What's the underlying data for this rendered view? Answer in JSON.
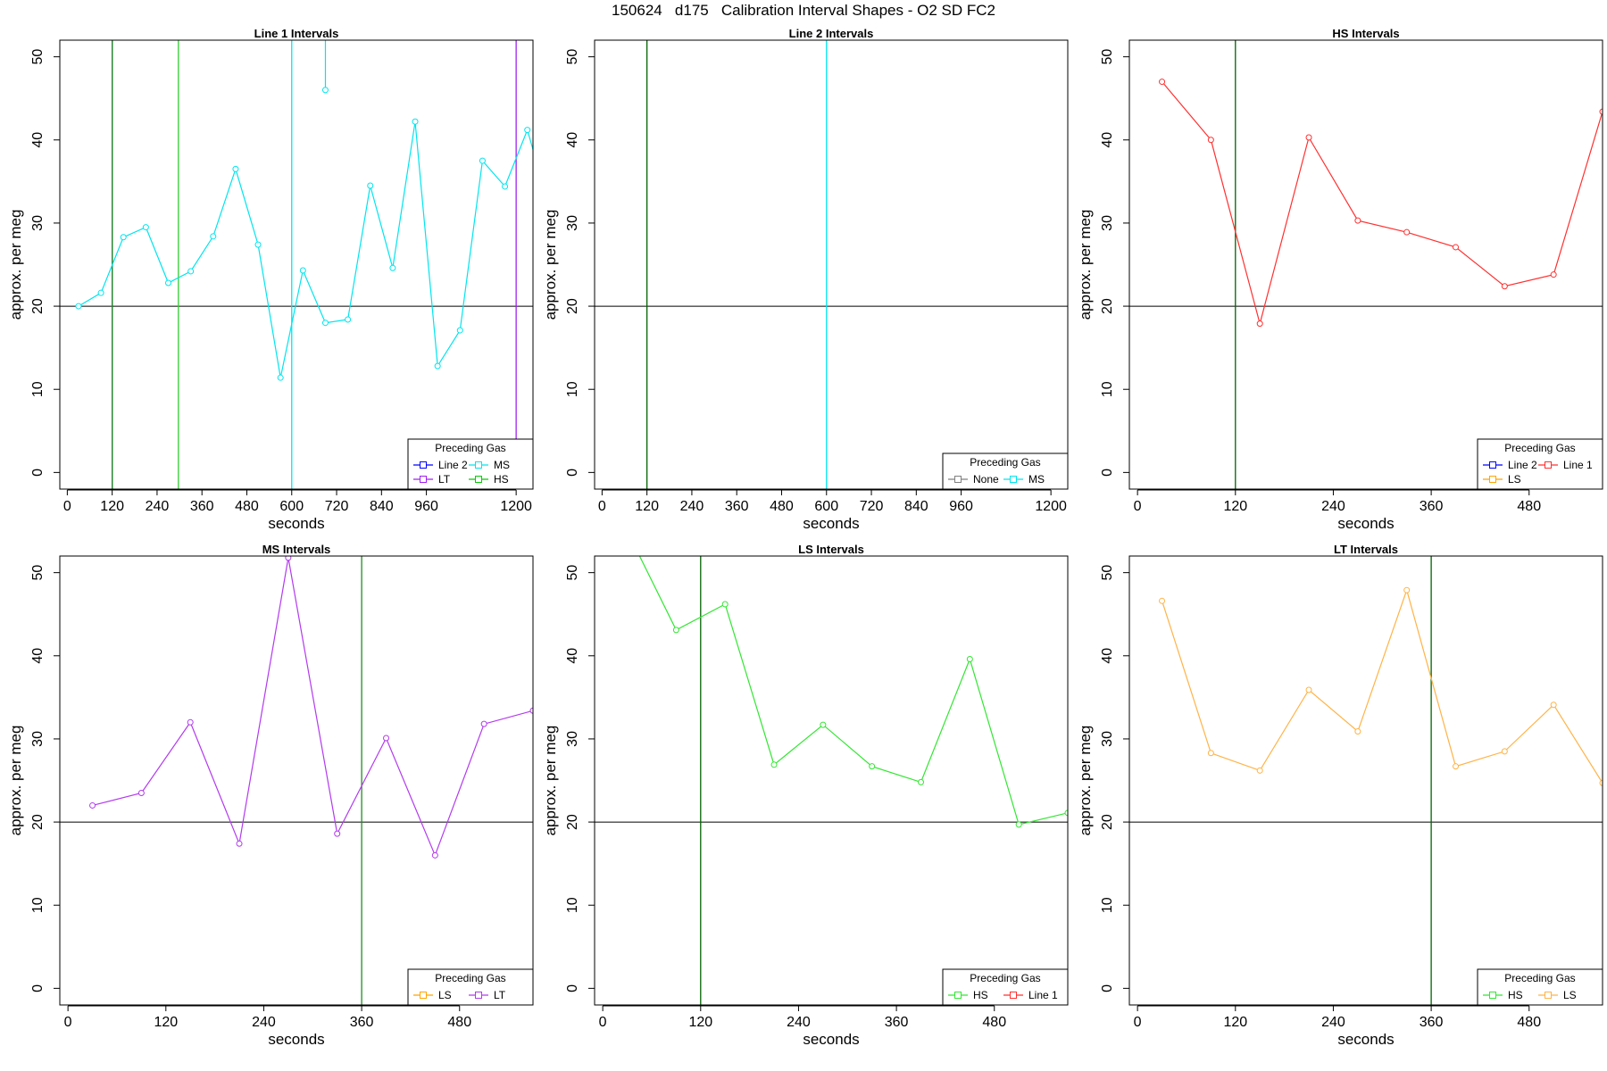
{
  "figure": {
    "title": "150624   d175   Calibration Interval Shapes - O2 SD FC2"
  },
  "chart_data": [
    {
      "id": "line1",
      "type": "line",
      "title": "Line 1 Intervals",
      "xlabel": "seconds",
      "ylabel": "approx. per meg",
      "xlim": [
        -20,
        1245
      ],
      "ylim": [
        -2,
        52
      ],
      "xticks": [
        0,
        120,
        240,
        360,
        480,
        600,
        720,
        840,
        960,
        1200
      ],
      "yticks": [
        0,
        10,
        20,
        30,
        40,
        50
      ],
      "hline": 20,
      "vlines": [
        {
          "x": 120,
          "color": "#000080"
        },
        {
          "x": 120,
          "color": "#228B22"
        },
        {
          "x": 297,
          "color": "#32CD32"
        },
        {
          "x": 600,
          "color": "#00E5EE"
        },
        {
          "x": 1200,
          "color": "#A020F0"
        }
      ],
      "series": [
        {
          "color": "#00E5EE",
          "segments": [
            [
              [
                30,
                20
              ],
              [
                90,
                21.6
              ],
              [
                150,
                28.3
              ],
              [
                210,
                29.5
              ],
              [
                270,
                22.8
              ],
              [
                330,
                24.2
              ],
              [
                390,
                28.4
              ],
              [
                450,
                36.5
              ],
              [
                510,
                27.4
              ],
              [
                570,
                11.4
              ],
              [
                630,
                24.3
              ],
              [
                690,
                18
              ],
              [
                750,
                18.4
              ],
              [
                810,
                34.5
              ],
              [
                870,
                24.6
              ],
              [
                930,
                42.2
              ],
              [
                990,
                12.8
              ],
              [
                1050,
                17.1
              ],
              [
                1110,
                37.5
              ],
              [
                1170,
                34.4
              ],
              [
                1230,
                41.2
              ],
              [
                1260,
                36.5
              ]
            ],
            [
              [
                690,
                46
              ],
              [
                690,
                53
              ]
            ]
          ]
        }
      ],
      "legend": {
        "title": "Preceding Gas",
        "position": "bottom-right",
        "columns": 2,
        "entries": [
          {
            "label": "Line 2",
            "color": "#0000FF"
          },
          {
            "label": "MS",
            "color": "#00E5EE"
          },
          {
            "label": "LT",
            "color": "#A020F0"
          },
          {
            "label": "HS",
            "color": "#00CD00"
          }
        ]
      }
    },
    {
      "id": "line2",
      "type": "line",
      "title": "Line 2 Intervals",
      "xlabel": "seconds",
      "ylabel": "approx. per meg",
      "xlim": [
        -20,
        1245
      ],
      "ylim": [
        -2,
        52
      ],
      "xticks": [
        0,
        120,
        240,
        360,
        480,
        600,
        720,
        840,
        960,
        1200
      ],
      "yticks": [
        0,
        10,
        20,
        30,
        40,
        50
      ],
      "hline": 20,
      "vlines": [
        {
          "x": 120,
          "color": "#006400"
        },
        {
          "x": 600,
          "color": "#00E5EE"
        }
      ],
      "series": [],
      "legend": {
        "title": "Preceding Gas",
        "position": "bottom-right",
        "columns": 2,
        "entries": [
          {
            "label": "None",
            "color": "#808080"
          },
          {
            "label": "MS",
            "color": "#00E5EE"
          }
        ]
      }
    },
    {
      "id": "hs",
      "type": "line",
      "title": "HS Intervals",
      "xlabel": "seconds",
      "ylabel": "approx. per meg",
      "xlim": [
        -10,
        570
      ],
      "ylim": [
        -2,
        52
      ],
      "xticks": [
        0,
        120,
        240,
        360,
        480
      ],
      "yticks": [
        0,
        10,
        20,
        30,
        40,
        50
      ],
      "hline": 20,
      "vlines": [
        {
          "x": 120,
          "color": "#006400"
        }
      ],
      "series": [
        {
          "color": "#FF3030",
          "segments": [
            [
              [
                30,
                47
              ],
              [
                90,
                40
              ],
              [
                150,
                17.9
              ],
              [
                210,
                40.3
              ],
              [
                270,
                30.3
              ],
              [
                330,
                28.9
              ],
              [
                390,
                27.1
              ],
              [
                450,
                22.4
              ],
              [
                510,
                23.8
              ],
              [
                570,
                43.4
              ]
            ]
          ]
        }
      ],
      "legend": {
        "title": "Preceding Gas",
        "position": "bottom-right",
        "columns": 2,
        "entries": [
          {
            "label": "Line 2",
            "color": "#0000FF"
          },
          {
            "label": "Line 1",
            "color": "#FF3030"
          },
          {
            "label": "LS",
            "color": "#FFA500"
          }
        ]
      }
    },
    {
      "id": "ms",
      "type": "line",
      "title": "MS Intervals",
      "xlabel": "seconds",
      "ylabel": "approx. per meg",
      "xlim": [
        -10,
        570
      ],
      "ylim": [
        -2,
        52
      ],
      "xticks": [
        0,
        120,
        240,
        360,
        480
      ],
      "yticks": [
        0,
        10,
        20,
        30,
        40,
        50
      ],
      "hline": 20,
      "vlines": [
        {
          "x": 360,
          "color": "#228B22"
        }
      ],
      "series": [
        {
          "color": "#B23AEE",
          "segments": [
            [
              [
                30,
                22
              ],
              [
                90,
                23.5
              ],
              [
                150,
                32
              ],
              [
                210,
                17.4
              ],
              [
                270,
                51.8
              ],
              [
                330,
                18.6
              ],
              [
                390,
                30.1
              ],
              [
                450,
                16
              ],
              [
                510,
                31.8
              ],
              [
                570,
                33.4
              ]
            ]
          ]
        }
      ],
      "legend": {
        "title": "Preceding Gas",
        "position": "bottom-right",
        "columns": 2,
        "entries": [
          {
            "label": "LS",
            "color": "#FFA500"
          },
          {
            "label": "LT",
            "color": "#B23AEE"
          }
        ]
      }
    },
    {
      "id": "ls",
      "type": "line",
      "title": "LS Intervals",
      "xlabel": "seconds",
      "ylabel": "approx. per meg",
      "xlim": [
        -10,
        570
      ],
      "ylim": [
        -2,
        52
      ],
      "xticks": [
        0,
        120,
        240,
        360,
        480
      ],
      "yticks": [
        0,
        10,
        20,
        30,
        40,
        50
      ],
      "hline": 20,
      "vlines": [
        {
          "x": 120,
          "color": "#006400"
        }
      ],
      "series": [
        {
          "color": "#32E632",
          "segments": [
            [
              [
                30,
                55
              ],
              [
                90,
                43.1
              ],
              [
                150,
                46.2
              ],
              [
                210,
                26.9
              ],
              [
                270,
                31.7
              ],
              [
                330,
                26.7
              ],
              [
                390,
                24.8
              ],
              [
                450,
                39.6
              ],
              [
                510,
                19.7
              ],
              [
                570,
                21.1
              ]
            ]
          ]
        }
      ],
      "legend": {
        "title": "Preceding Gas",
        "position": "bottom-right",
        "columns": 2,
        "entries": [
          {
            "label": "HS",
            "color": "#32E632"
          },
          {
            "label": "Line 1",
            "color": "#FF3030"
          }
        ]
      }
    },
    {
      "id": "lt",
      "type": "line",
      "title": "LT Intervals",
      "xlabel": "seconds",
      "ylabel": "approx. per meg",
      "xlim": [
        -10,
        570
      ],
      "ylim": [
        -2,
        52
      ],
      "xticks": [
        0,
        120,
        240,
        360,
        480
      ],
      "yticks": [
        0,
        10,
        20,
        30,
        40,
        50
      ],
      "hline": 20,
      "vlines": [
        {
          "x": 360,
          "color": "#006400"
        }
      ],
      "series": [
        {
          "color": "#FFB347",
          "segments": [
            [
              [
                30,
                46.6
              ],
              [
                90,
                28.3
              ],
              [
                150,
                26.2
              ],
              [
                210,
                35.9
              ],
              [
                270,
                30.9
              ],
              [
                330,
                47.9
              ],
              [
                390,
                26.7
              ],
              [
                450,
                28.5
              ],
              [
                510,
                34.1
              ],
              [
                570,
                24.7
              ]
            ]
          ]
        }
      ],
      "legend": {
        "title": "Preceding Gas",
        "position": "bottom-right",
        "columns": 2,
        "entries": [
          {
            "label": "HS",
            "color": "#32E632"
          },
          {
            "label": "LS",
            "color": "#FFB347"
          }
        ]
      }
    }
  ]
}
